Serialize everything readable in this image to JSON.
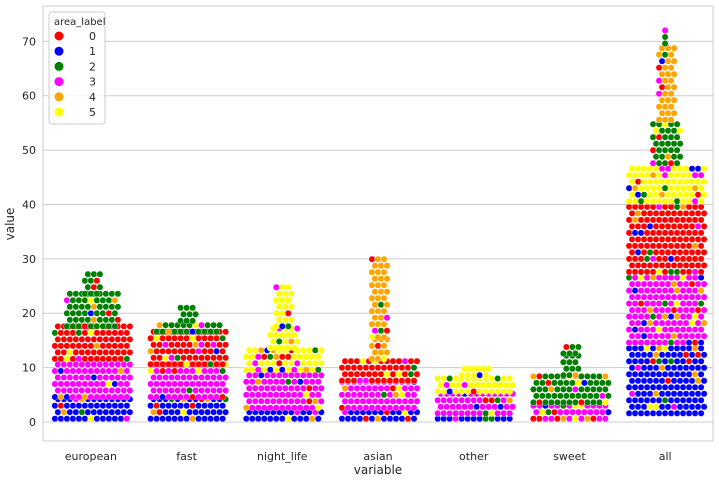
{
  "chart_data": {
    "type": "scatter",
    "subtype": "swarm",
    "title": "",
    "xlabel": "variable",
    "ylabel": "value",
    "ylim": [
      -3.5,
      76.5
    ],
    "yticks": [
      0,
      10,
      20,
      30,
      40,
      50,
      60,
      70
    ],
    "grid": "horizontal",
    "legend": {
      "title": "area_label",
      "placement": "top-left",
      "entries": [
        {
          "label": "0",
          "color": "#ff0000"
        },
        {
          "label": "1",
          "color": "#0000ff"
        },
        {
          "label": "2",
          "color": "#008000"
        },
        {
          "label": "3",
          "color": "#ff00ff"
        },
        {
          "label": "4",
          "color": "#ffa500"
        },
        {
          "label": "5",
          "color": "#ffff00"
        }
      ]
    },
    "categories": [
      "european",
      "fast",
      "night_life",
      "asian",
      "other",
      "sweet",
      "all"
    ],
    "groups": [
      {
        "category": "european",
        "bands": [
          {
            "label": "1",
            "from": 0,
            "to": 4,
            "width": 5
          },
          {
            "label": "3",
            "from": 4,
            "to": 11,
            "width": 5
          },
          {
            "label": "0",
            "from": 11,
            "to": 17,
            "width": 5
          },
          {
            "label": "2",
            "from": 17,
            "to": 23,
            "width": 3
          },
          {
            "label": "2",
            "from": 23,
            "to": 27,
            "width": 1
          }
        ]
      },
      {
        "category": "fast",
        "bands": [
          {
            "label": "1",
            "from": 0,
            "to": 4,
            "width": 5
          },
          {
            "label": "3",
            "from": 4,
            "to": 10,
            "width": 5
          },
          {
            "label": "0",
            "from": 10,
            "to": 16,
            "width": 5
          },
          {
            "label": "2",
            "from": 16,
            "to": 18,
            "width": 4
          },
          {
            "label": "2",
            "from": 18,
            "to": 21,
            "width": 1
          }
        ]
      },
      {
        "category": "night_life",
        "bands": [
          {
            "label": "1",
            "from": 0,
            "to": 2,
            "width": 5
          },
          {
            "label": "3",
            "from": 2,
            "to": 9,
            "width": 5
          },
          {
            "label": "5",
            "from": 9,
            "to": 13,
            "width": 5
          },
          {
            "label": "5",
            "from": 13,
            "to": 17,
            "width": 2
          },
          {
            "label": "5",
            "from": 17,
            "to": 25,
            "width": 1
          }
        ]
      },
      {
        "category": "asian",
        "bands": [
          {
            "label": "1",
            "from": 0,
            "to": 2,
            "width": 5
          },
          {
            "label": "3",
            "from": 2,
            "to": 7,
            "width": 5
          },
          {
            "label": "0",
            "from": 7,
            "to": 11,
            "width": 5
          },
          {
            "label": "4",
            "from": 11,
            "to": 15,
            "width": 1
          },
          {
            "label": "4",
            "from": 15,
            "to": 30,
            "width": 0.6
          }
        ]
      },
      {
        "category": "other",
        "bands": [
          {
            "label": "1",
            "from": 0,
            "to": 1,
            "width": 5
          },
          {
            "label": "3",
            "from": 1,
            "to": 5,
            "width": 5
          },
          {
            "label": "5",
            "from": 5,
            "to": 8,
            "width": 5
          },
          {
            "label": "5",
            "from": 8,
            "to": 10,
            "width": 2
          }
        ]
      },
      {
        "category": "sweet",
        "bands": [
          {
            "label": "3",
            "from": 0,
            "to": 3,
            "width": 5
          },
          {
            "label": "2",
            "from": 3,
            "to": 8,
            "width": 5
          },
          {
            "label": "2",
            "from": 8,
            "to": 12,
            "width": 1
          },
          {
            "label": "2",
            "from": 12,
            "to": 14,
            "width": 0.6
          }
        ]
      },
      {
        "category": "all",
        "bands": [
          {
            "label": "1",
            "from": 1,
            "to": 14,
            "width": 5
          },
          {
            "label": "3",
            "from": 14,
            "to": 27,
            "width": 5
          },
          {
            "label": "0",
            "from": 27,
            "to": 40,
            "width": 5
          },
          {
            "label": "5",
            "from": 40,
            "to": 47,
            "width": 5
          },
          {
            "label": "2",
            "from": 47,
            "to": 55,
            "width": 1.5
          },
          {
            "label": "4",
            "from": 55,
            "to": 69,
            "width": 0.8
          },
          {
            "label": "2",
            "from": 69,
            "to": 72,
            "width": 0.3
          }
        ]
      }
    ]
  }
}
